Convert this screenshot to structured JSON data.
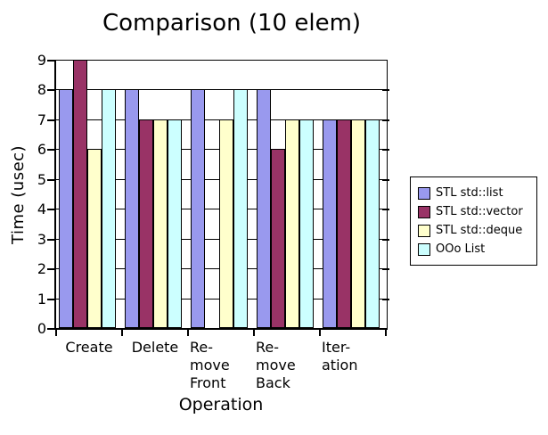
{
  "chart_data": {
    "type": "bar",
    "title": "Comparison (10 elem)",
    "xlabel": "Operation",
    "ylabel": "Time (usec)",
    "ylim": [
      0,
      9
    ],
    "ytick_labels": [
      "0",
      "1",
      "2",
      "3",
      "4",
      "5",
      "6",
      "7",
      "8",
      "9"
    ],
    "grid": true,
    "legend_position": "right",
    "categories": [
      "Create",
      "Delete",
      "Re-\nmove\nFront",
      "Re-\nmove\nBack",
      "Iter-\nation"
    ],
    "series": [
      {
        "name": "STL std::list",
        "color": "#9999EE",
        "values": [
          8,
          8,
          8,
          8,
          7
        ]
      },
      {
        "name": "STL std::vector",
        "color": "#993366",
        "values": [
          9,
          7,
          0,
          6,
          7
        ]
      },
      {
        "name": "STL std::deque",
        "color": "#FFFFCC",
        "values": [
          6,
          7,
          7,
          7,
          7
        ]
      },
      {
        "name": "OOo List",
        "color": "#CCFFFF",
        "values": [
          8,
          7,
          8,
          7,
          7
        ]
      }
    ]
  }
}
